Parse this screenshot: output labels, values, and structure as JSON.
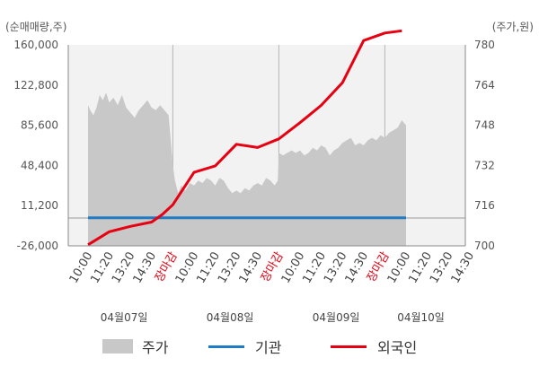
{
  "chart_data": {
    "type": "area",
    "left_axis_label": "(순매매량,주)",
    "right_axis_label": "(주가,원)",
    "left_ticks": [
      160000,
      122800,
      85600,
      48400,
      11200,
      -26000
    ],
    "left_tick_labels": [
      "160,000",
      "122,800",
      "85,600",
      "48,400",
      "11,200",
      "-26,000"
    ],
    "left_range": [
      -26000,
      160000
    ],
    "right_ticks": [
      780,
      764,
      748,
      732,
      716,
      700
    ],
    "right_range": [
      700,
      780
    ],
    "x_labels": [
      {
        "text": "10:00",
        "red": false
      },
      {
        "text": "11:20",
        "red": false
      },
      {
        "text": "13:20",
        "red": false
      },
      {
        "text": "14:30",
        "red": false
      },
      {
        "text": "장마감",
        "red": true
      },
      {
        "text": "10:00",
        "red": false
      },
      {
        "text": "11:20",
        "red": false
      },
      {
        "text": "13:20",
        "red": false
      },
      {
        "text": "14:30",
        "red": false
      },
      {
        "text": "장마감",
        "red": true
      },
      {
        "text": "10:00",
        "red": false
      },
      {
        "text": "11:20",
        "red": false
      },
      {
        "text": "13:20",
        "red": false
      },
      {
        "text": "14:30",
        "red": false
      },
      {
        "text": "장마감",
        "red": true
      },
      {
        "text": "10:00",
        "red": false
      },
      {
        "text": "11:20",
        "red": false
      },
      {
        "text": "13:20",
        "red": false
      },
      {
        "text": "14:30",
        "red": false
      }
    ],
    "dates": [
      {
        "text": "04월07일",
        "slot": 1.7
      },
      {
        "text": "04월08일",
        "slot": 6.7
      },
      {
        "text": "04월09일",
        "slot": 11.7
      },
      {
        "text": "04월10일",
        "slot": 15.7
      }
    ],
    "session_dividers": [
      4,
      9,
      14
    ],
    "price_series": {
      "name": "주가",
      "color": "#c8c8c8",
      "points": [
        [
          0.0,
          756
        ],
        [
          0.1,
          754
        ],
        [
          0.25,
          752
        ],
        [
          0.4,
          755
        ],
        [
          0.55,
          760
        ],
        [
          0.7,
          758
        ],
        [
          0.85,
          761
        ],
        [
          1.0,
          757
        ],
        [
          1.2,
          759
        ],
        [
          1.4,
          756
        ],
        [
          1.6,
          760
        ],
        [
          1.8,
          755
        ],
        [
          2.0,
          753
        ],
        [
          2.2,
          751
        ],
        [
          2.4,
          754
        ],
        [
          2.6,
          756
        ],
        [
          2.8,
          758
        ],
        [
          3.0,
          755
        ],
        [
          3.2,
          754
        ],
        [
          3.4,
          756
        ],
        [
          3.6,
          754
        ],
        [
          3.8,
          752
        ],
        [
          4.0,
          732
        ],
        [
          4.1,
          726
        ],
        [
          4.25,
          721
        ],
        [
          4.4,
          724
        ],
        [
          4.6,
          722
        ],
        [
          4.8,
          725
        ],
        [
          5.0,
          724
        ],
        [
          5.2,
          726
        ],
        [
          5.4,
          725
        ],
        [
          5.6,
          727
        ],
        [
          5.8,
          726
        ],
        [
          6.0,
          724
        ],
        [
          6.2,
          727
        ],
        [
          6.4,
          726
        ],
        [
          6.6,
          723
        ],
        [
          6.8,
          721
        ],
        [
          7.0,
          722
        ],
        [
          7.2,
          721
        ],
        [
          7.4,
          723
        ],
        [
          7.6,
          722
        ],
        [
          7.8,
          724
        ],
        [
          8.0,
          725
        ],
        [
          8.2,
          724
        ],
        [
          8.4,
          727
        ],
        [
          8.6,
          726
        ],
        [
          8.8,
          724
        ],
        [
          8.95,
          726
        ],
        [
          9.0,
          737
        ],
        [
          9.2,
          736
        ],
        [
          9.4,
          737
        ],
        [
          9.6,
          738
        ],
        [
          9.8,
          737
        ],
        [
          10.0,
          738
        ],
        [
          10.2,
          736
        ],
        [
          10.4,
          737
        ],
        [
          10.6,
          739
        ],
        [
          10.8,
          738
        ],
        [
          11.0,
          740
        ],
        [
          11.2,
          739
        ],
        [
          11.4,
          736
        ],
        [
          11.6,
          738
        ],
        [
          11.8,
          739
        ],
        [
          12.0,
          741
        ],
        [
          12.2,
          742
        ],
        [
          12.4,
          743
        ],
        [
          12.6,
          740
        ],
        [
          12.8,
          741
        ],
        [
          13.0,
          740
        ],
        [
          13.2,
          742
        ],
        [
          13.4,
          743
        ],
        [
          13.6,
          742
        ],
        [
          13.8,
          744
        ],
        [
          14.0,
          743
        ],
        [
          14.2,
          745
        ],
        [
          14.4,
          746
        ],
        [
          14.6,
          747
        ],
        [
          14.8,
          750
        ],
        [
          15.0,
          748
        ]
      ]
    },
    "institution_series": {
      "name": "기관",
      "color": "#1e7bc4",
      "points": [
        [
          0.0,
          0
        ],
        [
          15.0,
          0
        ]
      ]
    },
    "foreign_series": {
      "name": "외국인",
      "color": "#e60012",
      "points": [
        [
          0.0,
          -25000
        ],
        [
          1.0,
          -13000
        ],
        [
          2.0,
          -8000
        ],
        [
          3.0,
          -4000
        ],
        [
          3.5,
          3000
        ],
        [
          4.0,
          12000
        ],
        [
          5.0,
          42000
        ],
        [
          6.0,
          48000
        ],
        [
          7.0,
          68000
        ],
        [
          8.0,
          65000
        ],
        [
          9.0,
          73000
        ],
        [
          10.0,
          88000
        ],
        [
          11.0,
          104000
        ],
        [
          12.0,
          125000
        ],
        [
          13.0,
          164000
        ],
        [
          14.0,
          171000
        ],
        [
          14.8,
          173000
        ]
      ]
    }
  },
  "legend": {
    "price": "주가",
    "institution": "기관",
    "foreign": "외국인"
  }
}
